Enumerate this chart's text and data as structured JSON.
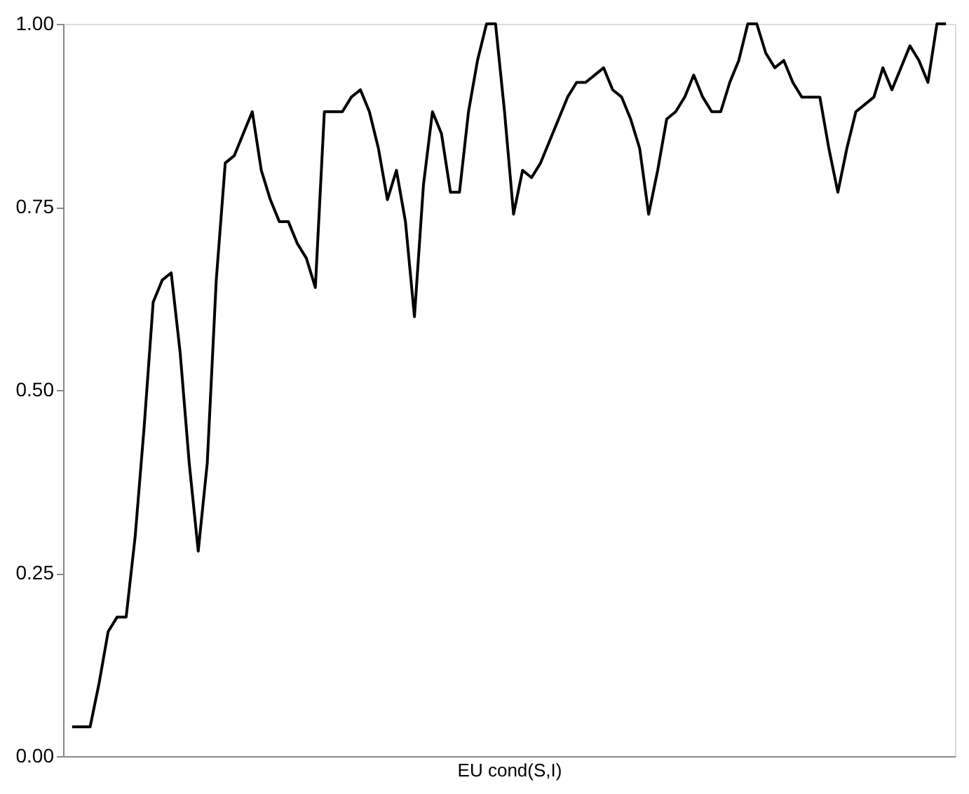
{
  "chart_data": {
    "type": "line",
    "xlabel": "EU cond(S,I)",
    "ylim": [
      0,
      1
    ],
    "yticks": [
      {
        "value": 0,
        "label": "0.00"
      },
      {
        "value": 0.25,
        "label": "0.25"
      },
      {
        "value": 0.5,
        "label": "0.50"
      },
      {
        "value": 0.75,
        "label": "0.75"
      },
      {
        "value": 1,
        "label": "1.00"
      }
    ],
    "tick_labels": "y",
    "categories": [
      null,
      null,
      null,
      null,
      null,
      null,
      null,
      null,
      null,
      null,
      null,
      null,
      null,
      null,
      null,
      null,
      null,
      null,
      null,
      null,
      null,
      null,
      null,
      null,
      null,
      null,
      null,
      null,
      null,
      null,
      null,
      null,
      null,
      null,
      null,
      null,
      null,
      null,
      null,
      null,
      null,
      null,
      null,
      null,
      null,
      null,
      null,
      null,
      null,
      null,
      null,
      null,
      null,
      null,
      null,
      null,
      null,
      null,
      null,
      null,
      null,
      null,
      null,
      null,
      null,
      null,
      null,
      null,
      null,
      null,
      null,
      null,
      null,
      null,
      null,
      null,
      null,
      null,
      null,
      null,
      null,
      null,
      null,
      null,
      null,
      null,
      null,
      null,
      null,
      null,
      null,
      null,
      null,
      null,
      null,
      null,
      null,
      null
    ],
    "series": [
      {
        "color": "#000000",
        "values": [
          0.04,
          0.04,
          0.04,
          0.1,
          0.17,
          0.19,
          0.19,
          0.3,
          0.45,
          0.62,
          0.65,
          0.66,
          0.55,
          0.4,
          0.28,
          0.4,
          0.65,
          0.81,
          0.82,
          0.85,
          0.88,
          0.8,
          0.76,
          0.73,
          0.73,
          0.7,
          0.68,
          0.64,
          0.88,
          0.88,
          0.88,
          0.9,
          0.91,
          0.88,
          0.83,
          0.76,
          0.8,
          0.73,
          0.6,
          0.78,
          0.88,
          0.85,
          0.77,
          0.77,
          0.88,
          0.95,
          1.0,
          1.0,
          0.88,
          0.74,
          0.8,
          0.79,
          0.81,
          0.84,
          0.87,
          0.9,
          0.92,
          0.92,
          0.93,
          0.94,
          0.91,
          0.9,
          0.87,
          0.83,
          0.74,
          0.8,
          0.87,
          0.88,
          0.9,
          0.93,
          0.9,
          0.88,
          0.88,
          0.92,
          0.95,
          1.0,
          1.0,
          0.96,
          0.94,
          0.95,
          0.92,
          0.9,
          0.9,
          0.9,
          0.83,
          0.77,
          0.83,
          0.88,
          0.89,
          0.9,
          0.94,
          0.91,
          0.94,
          0.97,
          0.95,
          0.92,
          1.0,
          1.0
        ]
      }
    ]
  }
}
